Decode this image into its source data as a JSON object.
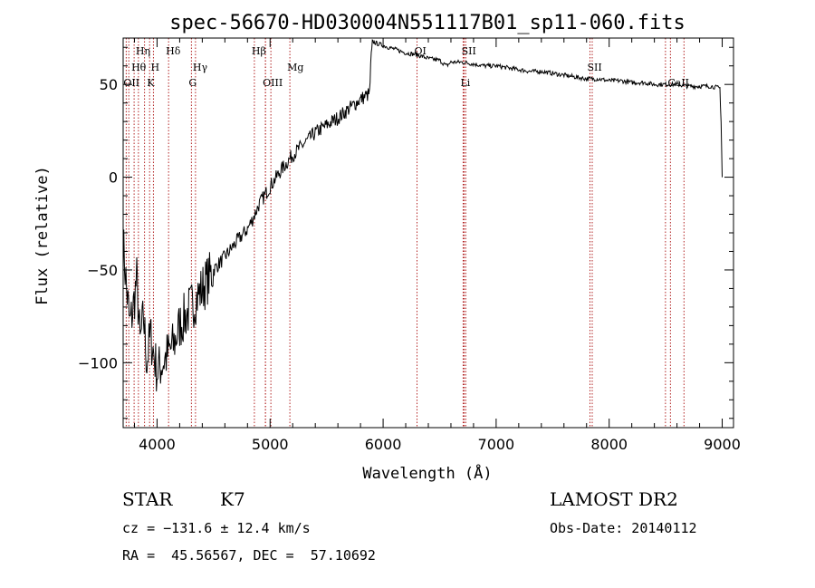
{
  "chart_data": {
    "type": "line",
    "title": "spec-56670-HD030004N551117B01_sp11-060.fits",
    "xlabel": "Wavelength (Å)",
    "ylabel": "Flux (relative)",
    "xlim": [
      3700,
      9100
    ],
    "ylim": [
      -135,
      75
    ],
    "xticks": [
      4000,
      5000,
      6000,
      7000,
      8000,
      9000
    ],
    "yticks": [
      50,
      0,
      -50,
      -100
    ],
    "series": [
      {
        "x": [
          3700,
          3730,
          3760,
          3790,
          3820,
          3850,
          3880,
          3910,
          3940,
          3970,
          4000,
          4050,
          4100,
          4150,
          4200,
          4250,
          4300,
          4350,
          4400,
          4500,
          4600,
          4700,
          4800,
          4850,
          4900,
          5000,
          5100,
          5200,
          5300,
          5400,
          5500,
          5600,
          5700,
          5800,
          5880,
          5895,
          5905,
          5950,
          6000,
          6100,
          6200,
          6300,
          6400,
          6500,
          6560,
          6600,
          6700,
          6800,
          6900,
          7000,
          7100,
          7200,
          7300,
          7400,
          7500,
          7600,
          7700,
          7800,
          7900,
          8000,
          8100,
          8200,
          8300,
          8400,
          8500,
          8600,
          8700,
          8800,
          8900,
          8980,
          8990,
          9000
        ],
        "values": [
          -35,
          -60,
          -80,
          -70,
          -55,
          -90,
          -75,
          -100,
          -85,
          -95,
          -105,
          -100,
          -95,
          -90,
          -80,
          -75,
          -70,
          -65,
          -60,
          -50,
          -43,
          -35,
          -28,
          -22,
          -15,
          -5,
          4,
          12,
          18,
          24,
          28,
          32,
          37,
          42,
          45,
          65,
          73,
          72,
          71,
          69,
          67,
          66,
          64,
          63,
          60,
          62,
          62,
          61,
          60,
          60,
          59,
          58,
          57,
          57,
          56,
          55,
          54,
          53,
          53,
          52,
          52,
          51,
          51,
          50,
          50,
          50,
          49,
          49,
          49,
          48,
          30,
          0
        ]
      }
    ],
    "line_marks": [
      {
        "label": "Hη",
        "x": 3835,
        "row": 1
      },
      {
        "label": "Hθ",
        "x": 3797,
        "row": 2
      },
      {
        "label": "OII",
        "x": 3727,
        "row": 3
      },
      {
        "label": "Hδ",
        "x": 4102,
        "row": 1
      },
      {
        "label": "H",
        "x": 3968,
        "row": 2
      },
      {
        "label": "K",
        "x": 3934,
        "row": 3
      },
      {
        "label": "Hβ",
        "x": 4861,
        "row": 1
      },
      {
        "label": "Hγ",
        "x": 4340,
        "row": 2
      },
      {
        "label": "G",
        "x": 4304,
        "row": 3
      },
      {
        "label": "Mg",
        "x": 5175,
        "row": 2
      },
      {
        "label": "OIII",
        "x": 4959,
        "row": 3
      },
      {
        "label": "OI",
        "x": 6300,
        "row": 1
      },
      {
        "label": "SII",
        "x": 6717,
        "row": 1
      },
      {
        "label": "Li",
        "x": 6708,
        "row": 3
      },
      {
        "label": "SII",
        "x": 7830,
        "row": 2
      },
      {
        "label": "CaII",
        "x": 8542,
        "row": 3
      }
    ],
    "mark_x_extra": [
      3750,
      3889,
      4959,
      5007,
      6731,
      7850,
      8498,
      8662
    ],
    "grid": false,
    "legend": "none"
  },
  "info": {
    "object_class": "STAR",
    "subclass": "K7",
    "survey": "LAMOST DR2",
    "cz": "cz = −131.6 ± 12.4 km/s",
    "obs_date": "Obs-Date: 20140112",
    "radec": "RA =  45.56567, DEC =  57.10692"
  },
  "colors": {
    "spectrum": "#000000",
    "line_marker": "#b22222"
  }
}
